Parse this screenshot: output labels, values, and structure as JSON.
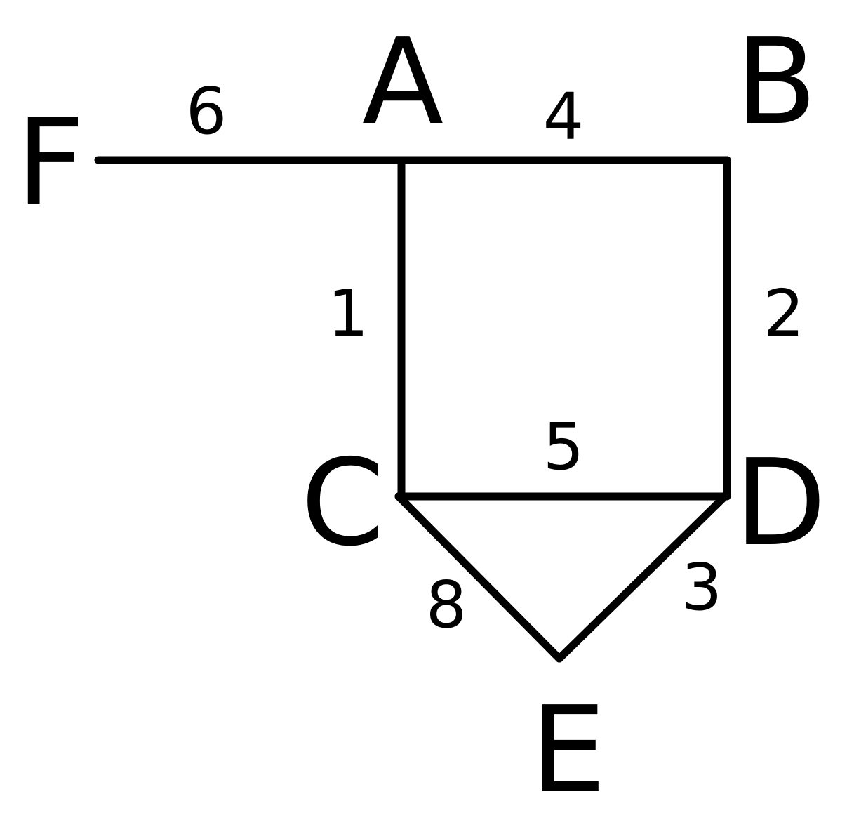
{
  "graph": {
    "nodes": [
      {
        "id": "A",
        "label": "A"
      },
      {
        "id": "B",
        "label": "B"
      },
      {
        "id": "C",
        "label": "C"
      },
      {
        "id": "D",
        "label": "D"
      },
      {
        "id": "E",
        "label": "E"
      },
      {
        "id": "F",
        "label": "F"
      }
    ],
    "edges": [
      {
        "from": "F",
        "to": "A",
        "weight": "6"
      },
      {
        "from": "A",
        "to": "B",
        "weight": "4"
      },
      {
        "from": "A",
        "to": "C",
        "weight": "1"
      },
      {
        "from": "B",
        "to": "D",
        "weight": "2"
      },
      {
        "from": "C",
        "to": "D",
        "weight": "5"
      },
      {
        "from": "C",
        "to": "E",
        "weight": "8"
      },
      {
        "from": "D",
        "to": "E",
        "weight": "3"
      }
    ]
  }
}
